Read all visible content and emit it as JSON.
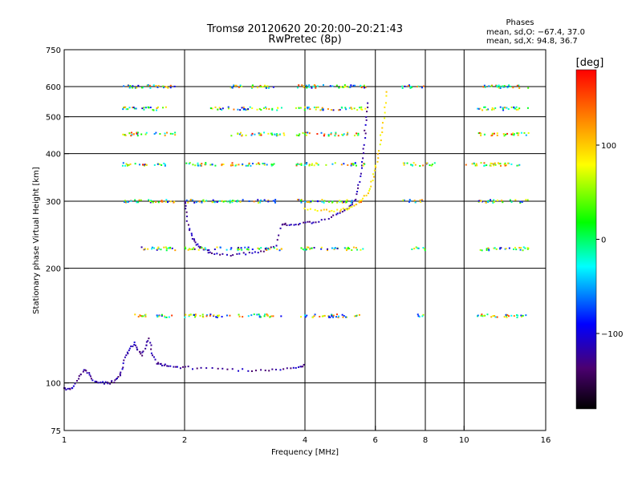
{
  "chart_data": {
    "type": "scatter",
    "title": "Tromsø 20120620 20:20:00–20:21:43",
    "subtitle": "RwPretec (8p)",
    "xlabel": "Frequency [MHz]",
    "ylabel": "Stationary phase Virtual Height [km]",
    "x_scale": "log2",
    "y_scale": "log",
    "xlim": [
      1,
      16
    ],
    "ylim": [
      75,
      750
    ],
    "x_ticks": [
      1,
      2,
      4,
      6,
      8,
      10,
      16
    ],
    "x_tick_labels": [
      "1",
      "2",
      "4",
      "6",
      "8",
      "10",
      "16"
    ],
    "y_ticks": [
      75,
      100,
      200,
      300,
      400,
      500,
      600,
      750
    ],
    "y_tick_labels": [
      "75",
      "100",
      "200",
      "300",
      "400",
      "500",
      "600",
      "750"
    ],
    "grid_x": [
      2,
      4,
      6,
      8,
      10
    ],
    "grid_y": [
      100,
      200,
      300,
      400,
      500,
      600
    ],
    "info": {
      "heading": "Phases",
      "line_o": "mean, sd,O: −67.4, 37.0",
      "line_x": "mean, sd,X:  94.8, 36.7"
    },
    "colorbar": {
      "label": "[deg]",
      "range": [
        -180,
        180
      ],
      "ticks": [
        100,
        0,
        -100
      ],
      "tick_labels": [
        "100",
        "0",
        "−100"
      ]
    },
    "series": [
      {
        "name": "E-layer trace",
        "phase_deg": -120,
        "points": [
          [
            1.0,
            97
          ],
          [
            1.03,
            96
          ],
          [
            1.06,
            98
          ],
          [
            1.09,
            104
          ],
          [
            1.12,
            108
          ],
          [
            1.15,
            106
          ],
          [
            1.18,
            102
          ],
          [
            1.22,
            100
          ],
          [
            1.26,
            100
          ],
          [
            1.3,
            100
          ],
          [
            1.34,
            101
          ],
          [
            1.38,
            104
          ],
          [
            1.4,
            110
          ],
          [
            1.43,
            118
          ],
          [
            1.46,
            124
          ],
          [
            1.5,
            127
          ],
          [
            1.53,
            122
          ],
          [
            1.56,
            118
          ],
          [
            1.6,
            125
          ],
          [
            1.63,
            130
          ],
          [
            1.66,
            120
          ],
          [
            1.7,
            113
          ],
          [
            1.75,
            112
          ],
          [
            1.8,
            111
          ],
          [
            1.9,
            110
          ],
          [
            2.0,
            110
          ],
          [
            2.2,
            109
          ],
          [
            2.5,
            109
          ],
          [
            2.8,
            108
          ],
          [
            3.1,
            108
          ],
          [
            3.4,
            108
          ],
          [
            3.7,
            109
          ],
          [
            3.9,
            110
          ],
          [
            4.0,
            112
          ]
        ]
      },
      {
        "name": "F-layer O trace",
        "phase_deg": -120,
        "points": [
          [
            2.0,
            300
          ],
          [
            2.02,
            280
          ],
          [
            2.05,
            255
          ],
          [
            2.1,
            240
          ],
          [
            2.15,
            232
          ],
          [
            2.2,
            226
          ],
          [
            2.3,
            220
          ],
          [
            2.4,
            218
          ],
          [
            2.6,
            217
          ],
          [
            2.8,
            218
          ],
          [
            3.0,
            220
          ],
          [
            3.2,
            224
          ],
          [
            3.4,
            228
          ],
          [
            3.5,
            262
          ],
          [
            3.6,
            260
          ],
          [
            3.8,
            262
          ],
          [
            4.0,
            263
          ],
          [
            4.2,
            264
          ],
          [
            4.5,
            268
          ],
          [
            4.8,
            276
          ],
          [
            5.0,
            282
          ],
          [
            5.2,
            292
          ],
          [
            5.35,
            305
          ],
          [
            5.45,
            330
          ],
          [
            5.55,
            365
          ],
          [
            5.6,
            400
          ],
          [
            5.65,
            450
          ],
          [
            5.7,
            500
          ],
          [
            5.75,
            560
          ]
        ]
      },
      {
        "name": "F-layer X trace",
        "phase_deg": 90,
        "points": [
          [
            4.0,
            286
          ],
          [
            4.3,
            284
          ],
          [
            4.6,
            283
          ],
          [
            4.9,
            284
          ],
          [
            5.1,
            287
          ],
          [
            5.3,
            292
          ],
          [
            5.5,
            300
          ],
          [
            5.7,
            312
          ],
          [
            5.85,
            330
          ],
          [
            5.95,
            352
          ],
          [
            6.05,
            380
          ],
          [
            6.15,
            420
          ],
          [
            6.25,
            470
          ],
          [
            6.35,
            530
          ],
          [
            6.45,
            600
          ]
        ]
      },
      {
        "name": "Interference band 600 km",
        "phase_deg": 30,
        "x_ranges": [
          [
            1.4,
            1.9
          ],
          [
            2.6,
            3.4
          ],
          [
            3.8,
            5.7
          ],
          [
            7.0,
            8.0
          ],
          [
            10.8,
            14.5
          ]
        ],
        "y": 600
      },
      {
        "name": "Interference band 525 km",
        "phase_deg": 10,
        "x_ranges": [
          [
            1.4,
            1.8
          ],
          [
            2.3,
            3.5
          ],
          [
            3.8,
            5.7
          ],
          [
            10.8,
            14.5
          ]
        ],
        "y": 525
      },
      {
        "name": "Interference band 450 km",
        "phase_deg": 60,
        "x_ranges": [
          [
            1.4,
            1.9
          ],
          [
            2.6,
            3.6
          ],
          [
            3.8,
            5.5
          ],
          [
            10.8,
            14.5
          ]
        ],
        "y": 450
      },
      {
        "name": "Interference band 375 km",
        "phase_deg": 40,
        "x_ranges": [
          [
            1.4,
            1.8
          ],
          [
            2.0,
            3.4
          ],
          [
            3.8,
            5.7
          ],
          [
            7.0,
            8.5
          ],
          [
            10.0,
            14.5
          ]
        ],
        "y": 375
      },
      {
        "name": "Interference band 300 km",
        "phase_deg": 20,
        "x_ranges": [
          [
            1.4,
            1.9
          ],
          [
            2.0,
            3.4
          ],
          [
            3.8,
            5.6
          ],
          [
            7.0,
            8.0
          ],
          [
            10.8,
            14.5
          ]
        ],
        "y": 300
      },
      {
        "name": "Interference band 225 km",
        "phase_deg": -10,
        "x_ranges": [
          [
            1.5,
            1.9
          ],
          [
            2.0,
            3.5
          ],
          [
            3.9,
            5.6
          ],
          [
            7.4,
            8.0
          ],
          [
            10.8,
            14.5
          ]
        ],
        "y": 225
      },
      {
        "name": "Interference band 150 km",
        "phase_deg": 30,
        "x_ranges": [
          [
            1.5,
            1.9
          ],
          [
            2.0,
            3.5
          ],
          [
            3.9,
            5.6
          ],
          [
            7.6,
            8.0
          ],
          [
            10.8,
            14.5
          ]
        ],
        "y": 150
      }
    ]
  }
}
